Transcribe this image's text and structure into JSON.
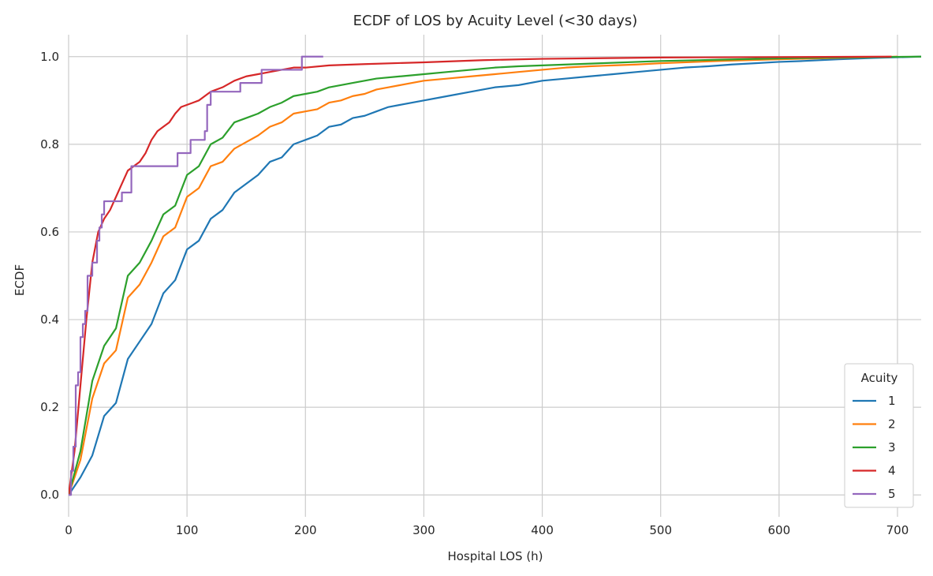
{
  "chart_data": {
    "type": "line",
    "title": "ECDF of LOS by Acuity Level (<30 days)",
    "xlabel": "Hospital LOS (h)",
    "ylabel": "ECDF",
    "xlim": [
      0,
      720
    ],
    "ylim": [
      -0.05,
      1.05
    ],
    "xticks": [
      "0",
      "100",
      "200",
      "300",
      "400",
      "500",
      "600",
      "700"
    ],
    "yticks": [
      "0.0",
      "0.2",
      "0.4",
      "0.6",
      "0.8",
      "1.0"
    ],
    "grid": true,
    "legend": {
      "title": "Acuity",
      "placement": "bottom-right"
    },
    "series": [
      {
        "name": "1",
        "color": "#1f77b4",
        "step": false,
        "points": [
          [
            0,
            0
          ],
          [
            10,
            0.04
          ],
          [
            20,
            0.09
          ],
          [
            30,
            0.18
          ],
          [
            40,
            0.21
          ],
          [
            50,
            0.31
          ],
          [
            60,
            0.35
          ],
          [
            70,
            0.39
          ],
          [
            80,
            0.46
          ],
          [
            90,
            0.49
          ],
          [
            100,
            0.56
          ],
          [
            110,
            0.58
          ],
          [
            120,
            0.63
          ],
          [
            130,
            0.65
          ],
          [
            140,
            0.69
          ],
          [
            150,
            0.71
          ],
          [
            160,
            0.73
          ],
          [
            170,
            0.76
          ],
          [
            180,
            0.77
          ],
          [
            190,
            0.8
          ],
          [
            200,
            0.81
          ],
          [
            210,
            0.82
          ],
          [
            220,
            0.84
          ],
          [
            230,
            0.845
          ],
          [
            240,
            0.86
          ],
          [
            250,
            0.865
          ],
          [
            260,
            0.875
          ],
          [
            270,
            0.885
          ],
          [
            280,
            0.89
          ],
          [
            300,
            0.9
          ],
          [
            320,
            0.91
          ],
          [
            340,
            0.92
          ],
          [
            360,
            0.93
          ],
          [
            380,
            0.935
          ],
          [
            400,
            0.945
          ],
          [
            420,
            0.95
          ],
          [
            440,
            0.955
          ],
          [
            460,
            0.96
          ],
          [
            480,
            0.965
          ],
          [
            500,
            0.97
          ],
          [
            520,
            0.975
          ],
          [
            540,
            0.978
          ],
          [
            560,
            0.982
          ],
          [
            580,
            0.985
          ],
          [
            600,
            0.988
          ],
          [
            620,
            0.99
          ],
          [
            650,
            0.994
          ],
          [
            680,
            0.997
          ],
          [
            720,
            1.0
          ]
        ]
      },
      {
        "name": "2",
        "color": "#ff7f0e",
        "step": false,
        "points": [
          [
            0,
            0
          ],
          [
            10,
            0.08
          ],
          [
            20,
            0.22
          ],
          [
            30,
            0.3
          ],
          [
            40,
            0.33
          ],
          [
            50,
            0.45
          ],
          [
            60,
            0.48
          ],
          [
            70,
            0.53
          ],
          [
            80,
            0.59
          ],
          [
            90,
            0.61
          ],
          [
            100,
            0.68
          ],
          [
            110,
            0.7
          ],
          [
            120,
            0.75
          ],
          [
            130,
            0.76
          ],
          [
            140,
            0.79
          ],
          [
            150,
            0.805
          ],
          [
            160,
            0.82
          ],
          [
            170,
            0.84
          ],
          [
            180,
            0.85
          ],
          [
            190,
            0.87
          ],
          [
            200,
            0.875
          ],
          [
            210,
            0.88
          ],
          [
            220,
            0.895
          ],
          [
            230,
            0.9
          ],
          [
            240,
            0.91
          ],
          [
            250,
            0.915
          ],
          [
            260,
            0.925
          ],
          [
            270,
            0.93
          ],
          [
            280,
            0.935
          ],
          [
            300,
            0.945
          ],
          [
            320,
            0.95
          ],
          [
            340,
            0.955
          ],
          [
            360,
            0.96
          ],
          [
            380,
            0.965
          ],
          [
            400,
            0.97
          ],
          [
            420,
            0.975
          ],
          [
            440,
            0.978
          ],
          [
            460,
            0.98
          ],
          [
            480,
            0.982
          ],
          [
            500,
            0.985
          ],
          [
            550,
            0.99
          ],
          [
            600,
            0.994
          ],
          [
            650,
            0.997
          ],
          [
            700,
            1.0
          ]
        ]
      },
      {
        "name": "3",
        "color": "#2ca02c",
        "step": false,
        "points": [
          [
            0,
            0
          ],
          [
            10,
            0.1
          ],
          [
            20,
            0.26
          ],
          [
            30,
            0.34
          ],
          [
            40,
            0.38
          ],
          [
            50,
            0.5
          ],
          [
            60,
            0.53
          ],
          [
            70,
            0.58
          ],
          [
            80,
            0.64
          ],
          [
            90,
            0.66
          ],
          [
            100,
            0.73
          ],
          [
            110,
            0.75
          ],
          [
            120,
            0.8
          ],
          [
            130,
            0.815
          ],
          [
            140,
            0.85
          ],
          [
            150,
            0.86
          ],
          [
            160,
            0.87
          ],
          [
            170,
            0.885
          ],
          [
            180,
            0.895
          ],
          [
            190,
            0.91
          ],
          [
            200,
            0.915
          ],
          [
            210,
            0.92
          ],
          [
            220,
            0.93
          ],
          [
            240,
            0.94
          ],
          [
            260,
            0.95
          ],
          [
            280,
            0.955
          ],
          [
            300,
            0.96
          ],
          [
            320,
            0.965
          ],
          [
            340,
            0.97
          ],
          [
            360,
            0.975
          ],
          [
            380,
            0.978
          ],
          [
            400,
            0.98
          ],
          [
            450,
            0.985
          ],
          [
            500,
            0.99
          ],
          [
            550,
            0.993
          ],
          [
            600,
            0.996
          ],
          [
            650,
            0.998
          ],
          [
            720,
            1.0
          ]
        ]
      },
      {
        "name": "4",
        "color": "#d62728",
        "step": false,
        "points": [
          [
            0,
            0
          ],
          [
            5,
            0.1
          ],
          [
            10,
            0.25
          ],
          [
            15,
            0.4
          ],
          [
            20,
            0.53
          ],
          [
            25,
            0.6
          ],
          [
            30,
            0.63
          ],
          [
            35,
            0.65
          ],
          [
            40,
            0.68
          ],
          [
            45,
            0.71
          ],
          [
            50,
            0.74
          ],
          [
            55,
            0.75
          ],
          [
            60,
            0.76
          ],
          [
            65,
            0.78
          ],
          [
            70,
            0.81
          ],
          [
            75,
            0.83
          ],
          [
            80,
            0.84
          ],
          [
            85,
            0.85
          ],
          [
            90,
            0.87
          ],
          [
            95,
            0.885
          ],
          [
            100,
            0.89
          ],
          [
            105,
            0.895
          ],
          [
            110,
            0.9
          ],
          [
            115,
            0.91
          ],
          [
            120,
            0.92
          ],
          [
            130,
            0.93
          ],
          [
            140,
            0.945
          ],
          [
            150,
            0.955
          ],
          [
            160,
            0.96
          ],
          [
            170,
            0.965
          ],
          [
            180,
            0.97
          ],
          [
            190,
            0.975
          ],
          [
            200,
            0.975
          ],
          [
            220,
            0.98
          ],
          [
            250,
            0.983
          ],
          [
            300,
            0.987
          ],
          [
            350,
            0.992
          ],
          [
            400,
            0.995
          ],
          [
            500,
            0.998
          ],
          [
            600,
            0.999
          ],
          [
            695,
            1.0
          ]
        ]
      },
      {
        "name": "5",
        "color": "#9467bd",
        "step": true,
        "points": [
          [
            0,
            0
          ],
          [
            2,
            0.055
          ],
          [
            4,
            0.11
          ],
          [
            6,
            0.25
          ],
          [
            8,
            0.28
          ],
          [
            10,
            0.36
          ],
          [
            12,
            0.39
          ],
          [
            14,
            0.42
          ],
          [
            16,
            0.5
          ],
          [
            20,
            0.53
          ],
          [
            24,
            0.58
          ],
          [
            26,
            0.61
          ],
          [
            28,
            0.64
          ],
          [
            30,
            0.67
          ],
          [
            45,
            0.69
          ],
          [
            53,
            0.75
          ],
          [
            92,
            0.78
          ],
          [
            103,
            0.81
          ],
          [
            115,
            0.83
          ],
          [
            117,
            0.89
          ],
          [
            120,
            0.92
          ],
          [
            145,
            0.94
          ],
          [
            163,
            0.97
          ],
          [
            197,
            1.0
          ],
          [
            215,
            1.0
          ]
        ]
      }
    ]
  }
}
